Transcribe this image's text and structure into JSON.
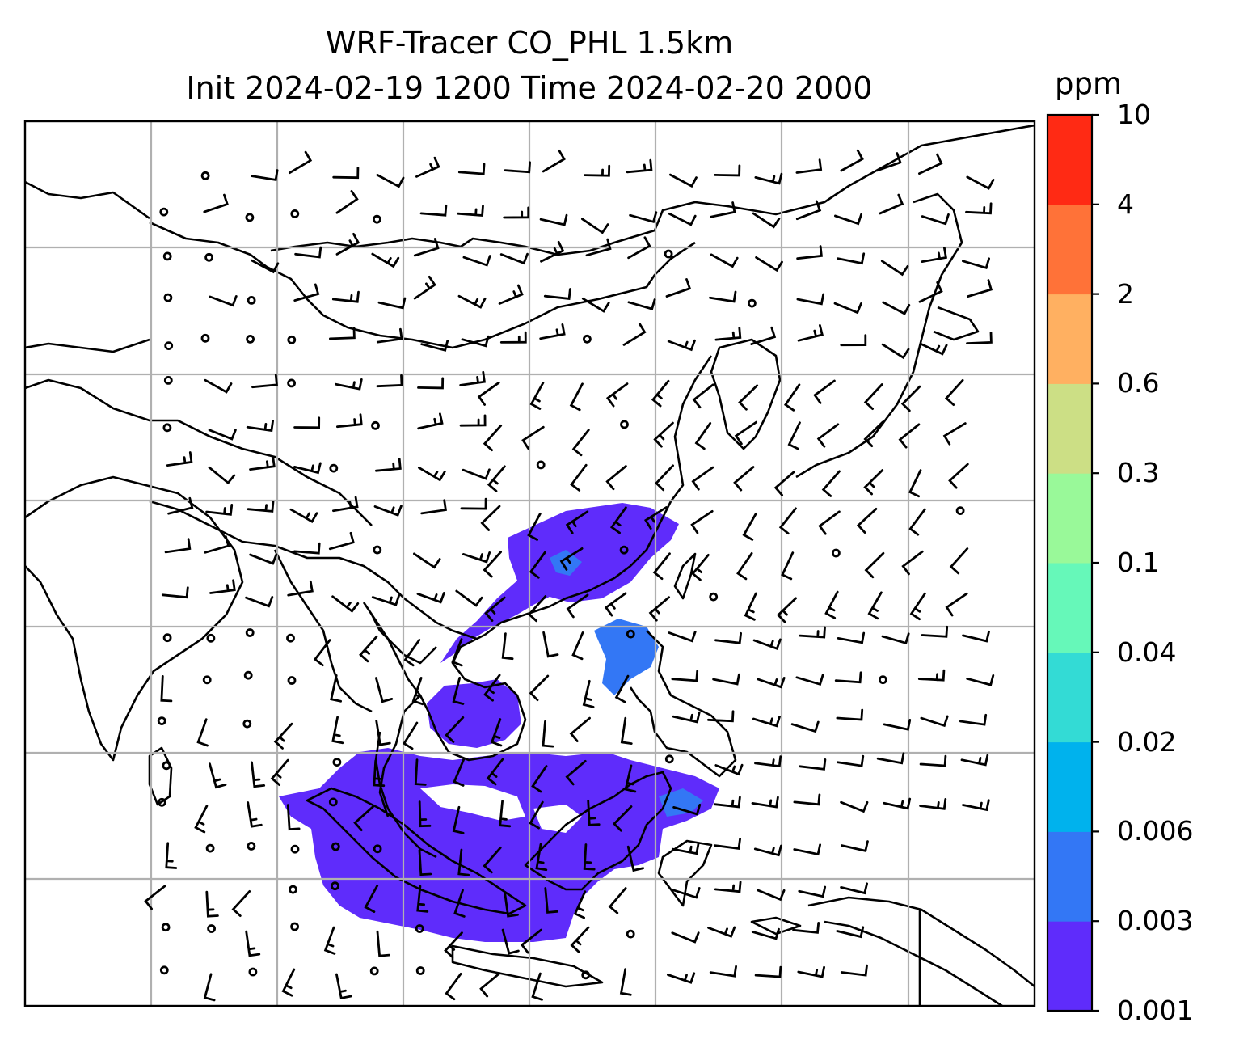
{
  "title_line1": "WRF-Tracer CO_PHL 1.5km",
  "title_line2": "Init 2024-02-19 1200 Time 2024-02-20 2000",
  "colorbar": {
    "unit": "ppm",
    "levels": [
      "0.001",
      "0.003",
      "0.006",
      "0.02",
      "0.04",
      "0.1",
      "0.3",
      "0.6",
      "2",
      "4",
      "10"
    ],
    "colors": [
      "#5f2cfb",
      "#3377f5",
      "#00b2ed",
      "#33dbd5",
      "#66f8b9",
      "#99f999",
      "#ccdf85",
      "#ffb061",
      "#ff7238",
      "#ff2a14"
    ]
  },
  "map": {
    "tracer_color": "#5f2cfb",
    "tracer_secondary_color": "#3377f5",
    "gridline_color": "#b0b0b0",
    "coastline_color": "#000000"
  }
}
